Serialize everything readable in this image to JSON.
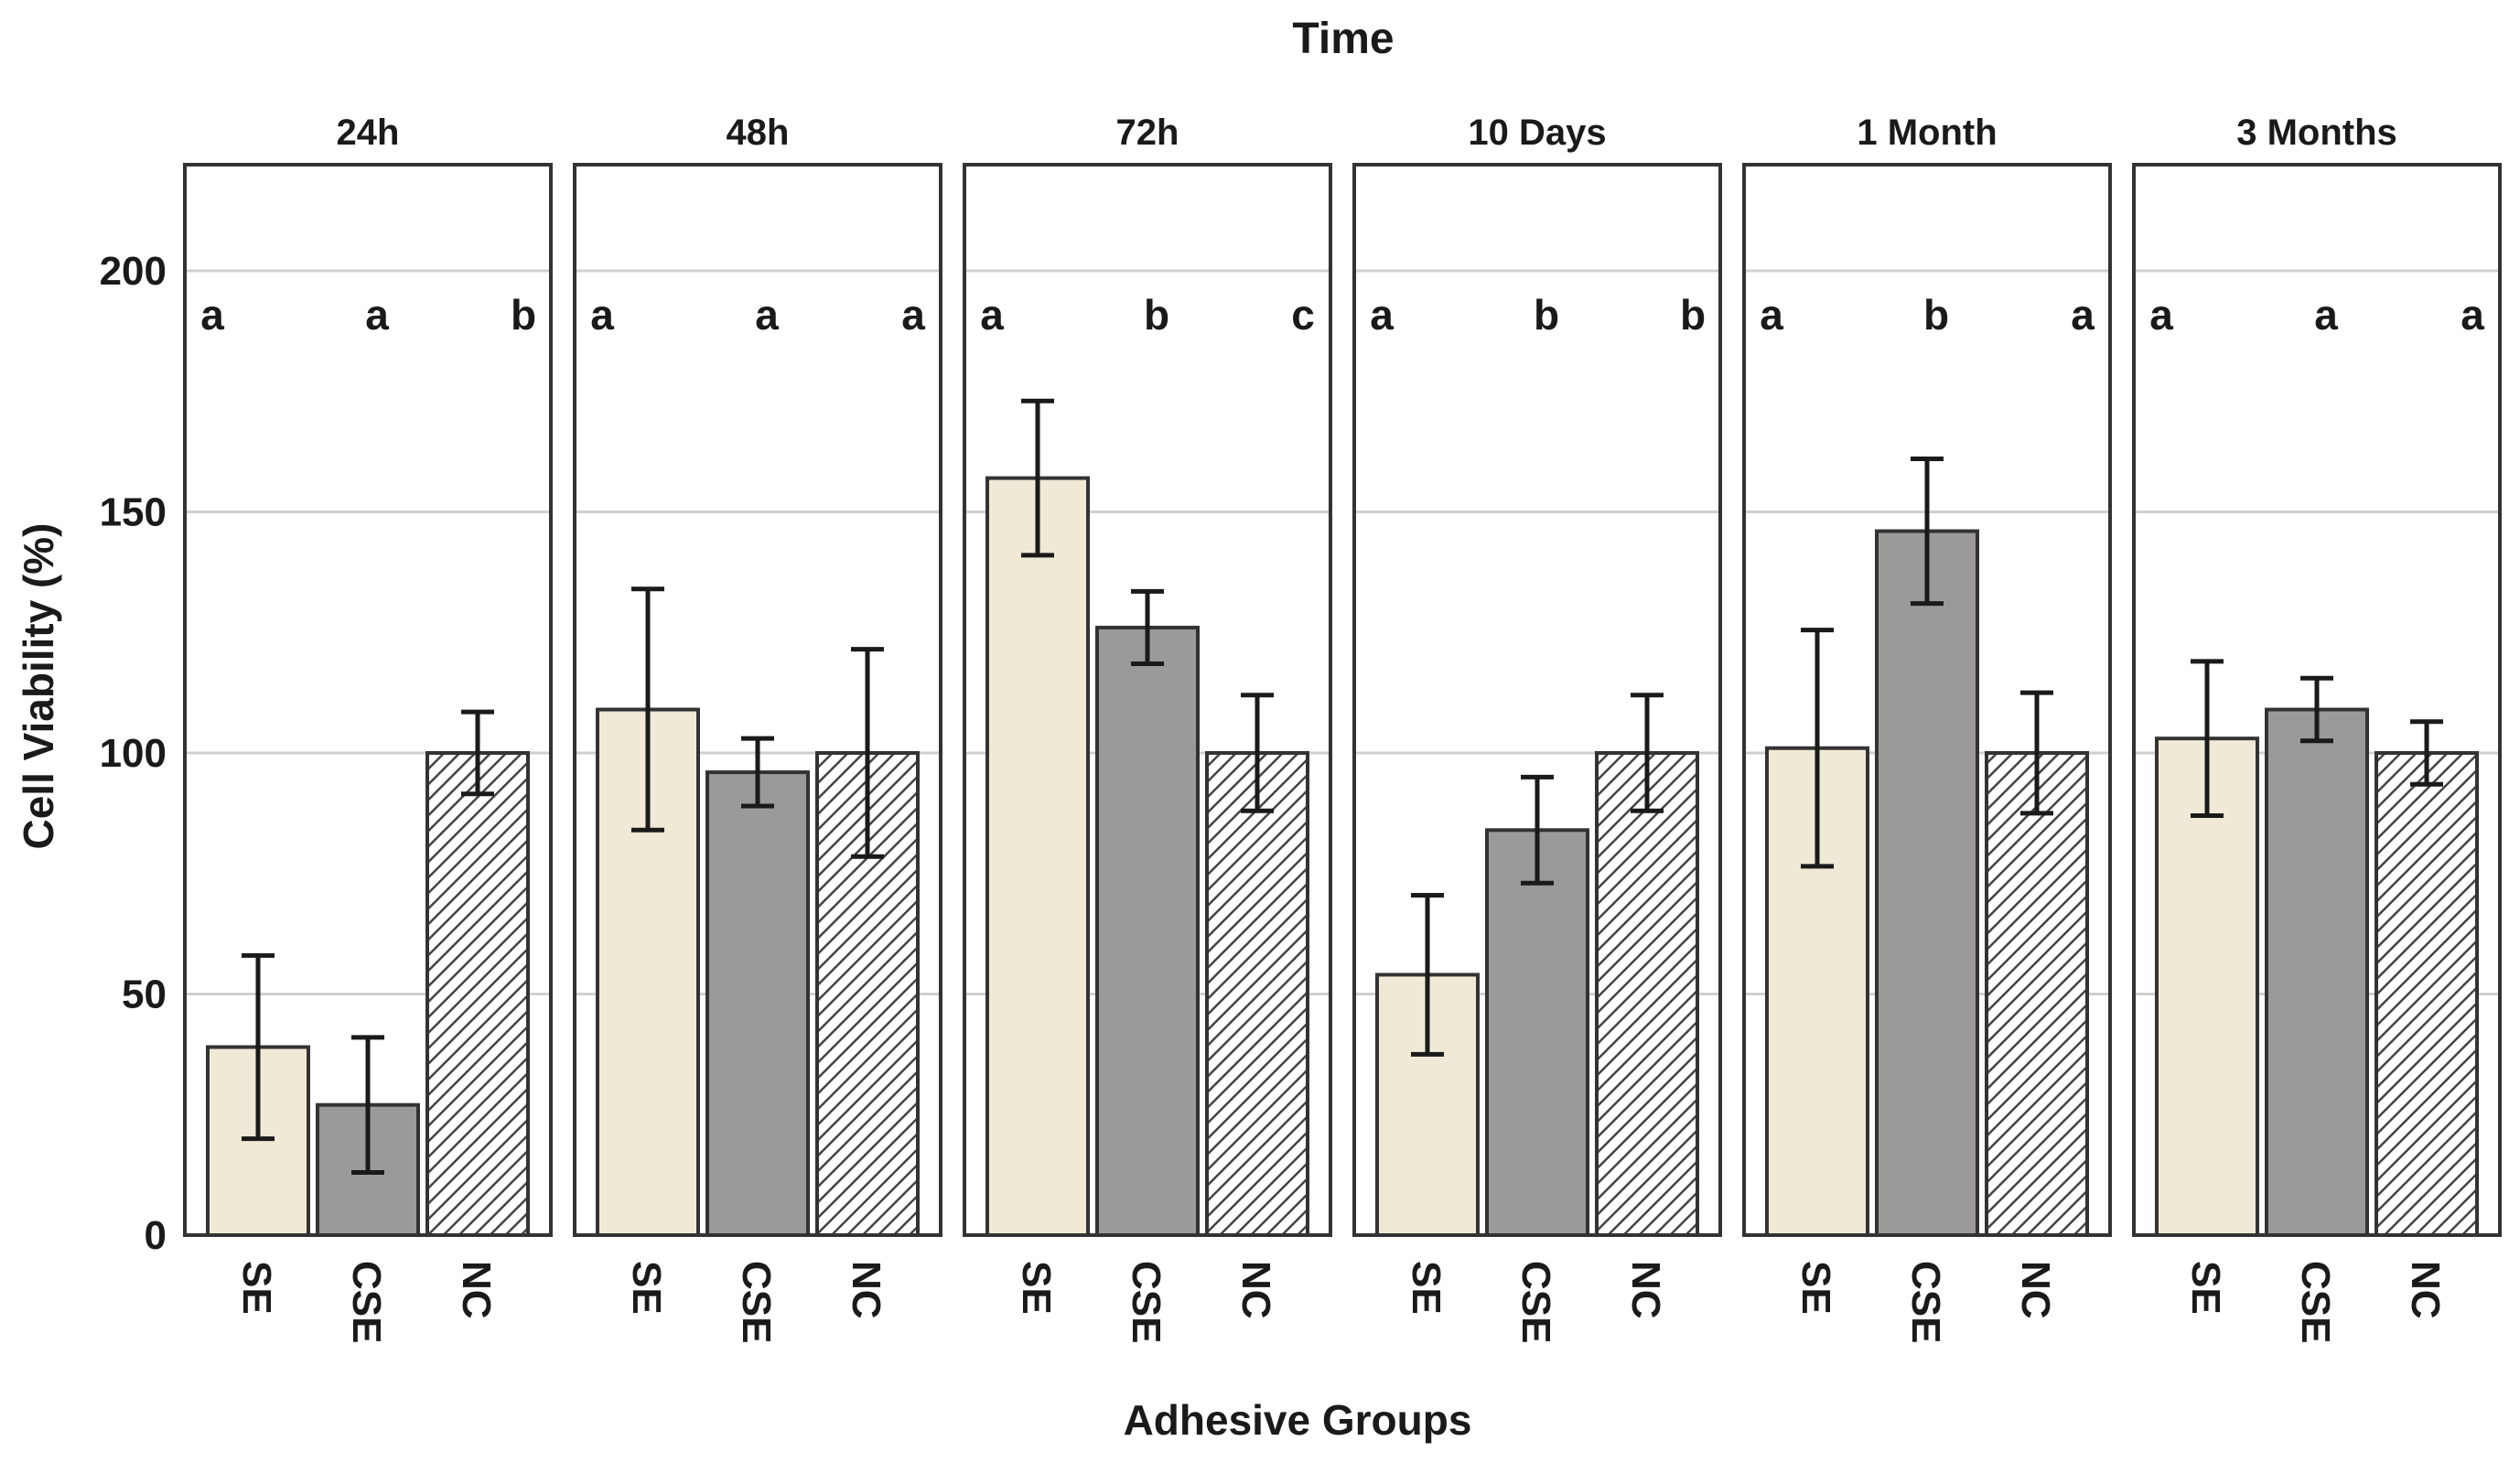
{
  "chart_data": {
    "type": "bar",
    "title": "Time",
    "xlabel": "Adhesive Groups",
    "ylabel": "Cell Viability (%)",
    "ylim": [
      0,
      222
    ],
    "yticks": [
      0,
      50,
      100,
      150,
      200
    ],
    "grid": true,
    "categories": [
      "SE",
      "CSE",
      "NC"
    ],
    "colors": {
      "SE": "#efe9d6",
      "CSE": "#9c9999",
      "NC": "hatched"
    },
    "panels": [
      {
        "label": "24h",
        "values": [
          39,
          27,
          100
        ],
        "errors": [
          19,
          14,
          8.5
        ],
        "letters": [
          "a",
          "a",
          "b"
        ]
      },
      {
        "label": "48h",
        "values": [
          109,
          96,
          100
        ],
        "errors": [
          25,
          7,
          21.5
        ],
        "letters": [
          "a",
          "a",
          "a"
        ]
      },
      {
        "label": "72h",
        "values": [
          157,
          126,
          100
        ],
        "errors": [
          16,
          7.5,
          12
        ],
        "letters": [
          "a",
          "b",
          "c"
        ]
      },
      {
        "label": "10 Days",
        "values": [
          54,
          84,
          100
        ],
        "errors": [
          16.5,
          11,
          12
        ],
        "letters": [
          "a",
          "b",
          "b"
        ]
      },
      {
        "label": "1 Month",
        "values": [
          101,
          146,
          100
        ],
        "errors": [
          24.5,
          15,
          12.5
        ],
        "letters": [
          "a",
          "b",
          "a"
        ]
      },
      {
        "label": "3 Months",
        "values": [
          103,
          109,
          100
        ],
        "errors": [
          16,
          6.5,
          6.5
        ],
        "letters": [
          "a",
          "a",
          "a"
        ]
      }
    ]
  }
}
